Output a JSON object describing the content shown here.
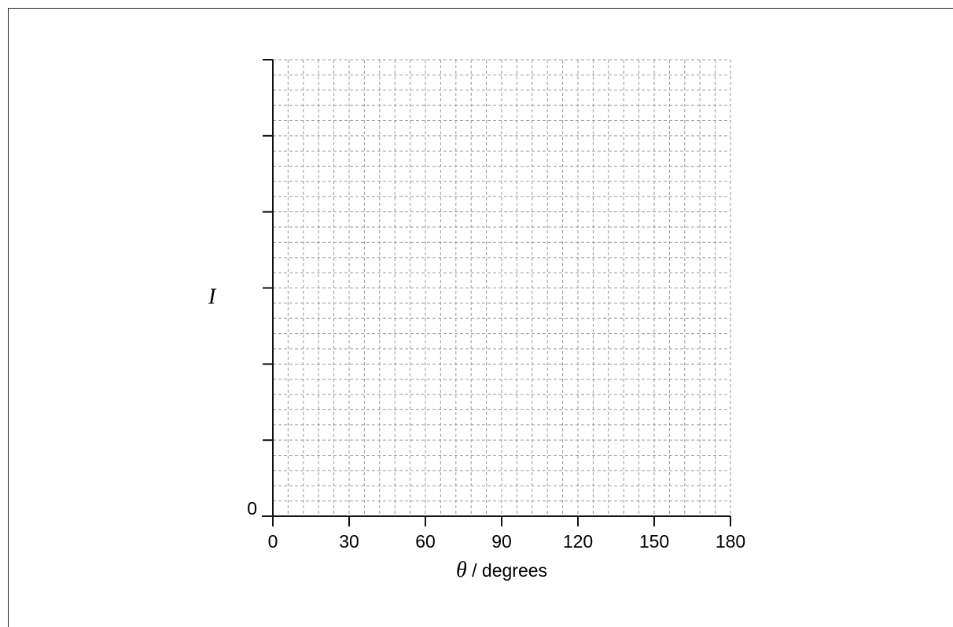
{
  "chart_data": {
    "type": "line",
    "title": "",
    "xlabel_var": "θ",
    "xlabel_rest": " / degrees",
    "ylabel": "I",
    "x_ticks": [
      "0",
      "30",
      "60",
      "90",
      "120",
      "150",
      "180"
    ],
    "y_ticks": [
      "0"
    ],
    "xlim": [
      0,
      180
    ],
    "ylim": [
      0,
      6
    ],
    "y_major_tick_count": 6,
    "grid": true,
    "grid_minor_per_major_x": 5,
    "grid_minor_per_major_y": 5,
    "series": []
  }
}
